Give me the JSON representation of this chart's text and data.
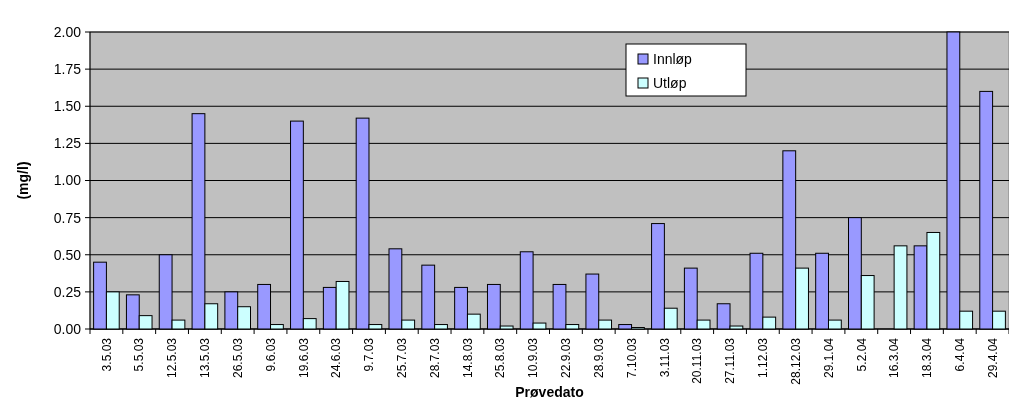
{
  "chart_data": {
    "type": "bar",
    "xlabel": "Prøvedato",
    "ylabel": "(mg/l)",
    "categories": [
      "3.5.03",
      "5.5.03",
      "12.5.03",
      "13.5.03",
      "26.5.03",
      "9.6.03",
      "19.6.03",
      "24.6.03",
      "9.7.03",
      "25.7.03",
      "28.7.03",
      "14.8.03",
      "25.8.03",
      "10.9.03",
      "22.9.03",
      "28.9.03",
      "7.10.03",
      "3.11.03",
      "20.11.03",
      "27.11.03",
      "1.12.03",
      "28.12.03",
      "29.1.04",
      "5.2.04",
      "16.3.04",
      "18.3.04",
      "6.4.04",
      "29.4.04"
    ],
    "series": [
      {
        "name": "Innløp",
        "color": "#9999ff",
        "values": [
          0.45,
          0.23,
          0.5,
          1.45,
          0.25,
          0.3,
          1.4,
          0.28,
          1.42,
          0.54,
          0.43,
          0.28,
          0.3,
          0.52,
          0.3,
          0.37,
          0.03,
          0.71,
          0.41,
          0.17,
          0.51,
          1.2,
          0.51,
          0.75,
          null,
          0.56,
          2.0,
          1.6
        ]
      },
      {
        "name": "Utløp",
        "color": "#ccffff",
        "values": [
          0.25,
          0.09,
          0.06,
          0.17,
          0.15,
          0.03,
          0.07,
          0.32,
          0.03,
          0.06,
          0.03,
          0.1,
          0.02,
          0.04,
          0.03,
          0.06,
          0.01,
          0.14,
          0.06,
          0.02,
          0.08,
          0.41,
          0.06,
          0.36,
          0.56,
          0.65,
          0.12,
          0.12
        ]
      }
    ],
    "ylim": [
      0,
      2
    ],
    "yticks": [
      {
        "value": 0,
        "label": "0.00"
      },
      {
        "value": 0.25,
        "label": "0.25"
      },
      {
        "value": 0.5,
        "label": "0.50"
      },
      {
        "value": 0.75,
        "label": "0.75"
      },
      {
        "value": 1,
        "label": "1.00"
      },
      {
        "value": 1.25,
        "label": "1.25"
      },
      {
        "value": 1.5,
        "label": "1.50"
      },
      {
        "value": 1.75,
        "label": "1.75"
      },
      {
        "value": 2,
        "label": "2.00"
      }
    ],
    "grid": "y",
    "legend": "top right"
  }
}
